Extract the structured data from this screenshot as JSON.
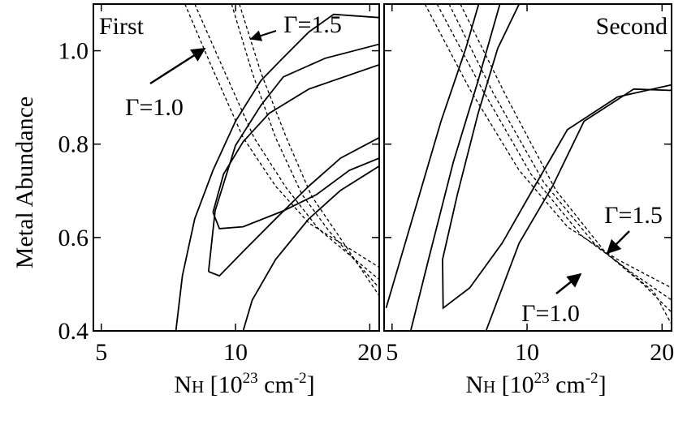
{
  "chart_data": [
    {
      "type": "contour",
      "title": "First",
      "ylabel": "Metal Abundance",
      "xlabel": [
        "N",
        "H",
        " [10",
        "23",
        " cm",
        "-2",
        "]"
      ],
      "xscale": "log",
      "xlim": [
        4.8,
        21
      ],
      "xticks": [
        5,
        10,
        20
      ],
      "ylim": [
        0.4,
        1.1
      ],
      "yticks": [
        0.4,
        0.6,
        0.8,
        {
          "value": 1,
          "label": "1.0"
        }
      ],
      "annotations": [
        "Γ=1.5",
        "Γ=1.0"
      ],
      "series": [
        {
          "color": "#000000",
          "line_style": "solid",
          "x": [
            7.35,
            7.6,
            8.1,
            8.9,
            10.0,
            11.4,
            12.6,
            14.6,
            16.6,
            21
          ],
          "y": [
            0.4,
            0.518,
            0.64,
            0.744,
            0.849,
            0.936,
            0.979,
            1.04,
            1.078,
            1.071
          ]
        },
        {
          "color": "#000000",
          "line_style": "solid",
          "x": [
            8.7,
            9.0,
            10.0,
            11.4,
            12.8,
            15.9,
            21,
            21,
            17.2,
            14.6,
            12.3,
            10.4,
            9.2,
            8.7
          ],
          "y": [
            0.527,
            0.657,
            0.797,
            0.883,
            0.944,
            0.984,
            1.014,
            0.814,
            0.77,
            0.71,
            0.64,
            0.57,
            0.518,
            0.527
          ]
        },
        {
          "color": "#000000",
          "line_style": "solid",
          "x": [
            8.9,
            9.4,
            10.4,
            11.9,
            14.6,
            21,
            21,
            18.0,
            15.2,
            12.8,
            10.4,
            9.2,
            8.9
          ],
          "y": [
            0.654,
            0.736,
            0.805,
            0.866,
            0.918,
            0.97,
            0.77,
            0.744,
            0.692,
            0.657,
            0.623,
            0.619,
            0.654
          ]
        },
        {
          "color": "#000000",
          "line_style": "solid",
          "x": [
            21,
            17.2,
            14.6,
            12.3,
            10.9,
            10.4
          ],
          "y": [
            0.753,
            0.701,
            0.64,
            0.553,
            0.466,
            0.4
          ]
        },
        {
          "color": "#000000",
          "line_style": "dashed",
          "x": [
            7.7,
            8.8,
            10.4,
            12.3,
            14.6,
            21
          ],
          "y": [
            1.1,
            0.97,
            0.814,
            0.71,
            0.631,
            0.536
          ]
        },
        {
          "color": "#000000",
          "line_style": "dashed",
          "x": [
            8.1,
            9.3,
            11.0,
            13.0,
            15.4,
            21
          ],
          "y": [
            1.1,
            0.97,
            0.814,
            0.706,
            0.617,
            0.51
          ]
        },
        {
          "color": "#000000",
          "line_style": "dashed",
          "x": [
            9.8,
            10.9,
            12.3,
            14.1,
            16.2,
            21
          ],
          "y": [
            1.1,
            0.953,
            0.814,
            0.692,
            0.614,
            0.492
          ]
        },
        {
          "color": "#000000",
          "line_style": "dashed",
          "x": [
            10.2,
            11.4,
            13.0,
            14.8,
            17.0,
            21
          ],
          "y": [
            1.1,
            0.953,
            0.814,
            0.689,
            0.605,
            0.475
          ]
        }
      ]
    },
    {
      "type": "contour",
      "title": "Second",
      "xlabel": [
        "N",
        "H",
        " [10",
        "23",
        " cm",
        "-2",
        "]"
      ],
      "xscale": "log",
      "xlim": [
        4.8,
        21
      ],
      "xticks": [
        5,
        10,
        20
      ],
      "ylim": [
        0.4,
        1.1
      ],
      "yticks": [
        0.4,
        0.6,
        0.8,
        {
          "value": 1,
          "label": "1.0"
        }
      ],
      "annotations": [
        "Γ=1.5",
        "Γ=1.0"
      ],
      "series": [
        {
          "color": "#000000",
          "line_style": "solid",
          "x": [
            4.85,
            5.55,
            6.43,
            7.3,
            7.8
          ],
          "y": [
            0.449,
            0.64,
            0.849,
            1.005,
            1.1
          ]
        },
        {
          "color": "#000000",
          "line_style": "solid",
          "x": [
            5.5,
            6.03,
            6.85,
            7.78,
            8.7
          ],
          "y": [
            0.4,
            0.553,
            0.762,
            0.936,
            1.1
          ]
        },
        {
          "color": "#000000",
          "line_style": "solid",
          "x": [
            9.6,
            8.6,
            7.78,
            6.99,
            6.48,
            6.5,
            7.45,
            8.8,
            10.4,
            12.3,
            15.9,
            21
          ],
          "y": [
            1.1,
            1.005,
            0.866,
            0.692,
            0.553,
            0.449,
            0.492,
            0.588,
            0.71,
            0.831,
            0.901,
            0.927
          ]
        },
        {
          "color": "#000000",
          "line_style": "solid",
          "x": [
            8.1,
            9.6,
            11.4,
            13.4,
            17.3,
            21
          ],
          "y": [
            0.4,
            0.588,
            0.71,
            0.849,
            0.918,
            0.915
          ]
        },
        {
          "color": "#000000",
          "line_style": "dashed",
          "x": [
            5.92,
            7.45,
            9.6,
            12.3,
            15.9,
            21
          ],
          "y": [
            1.1,
            0.918,
            0.744,
            0.623,
            0.553,
            0.492
          ]
        },
        {
          "color": "#000000",
          "line_style": "dashed",
          "x": [
            6.3,
            7.94,
            10.2,
            13.2,
            17.0,
            21
          ],
          "y": [
            1.1,
            0.918,
            0.736,
            0.605,
            0.527,
            0.466
          ]
        },
        {
          "color": "#000000",
          "line_style": "dashed",
          "x": [
            6.7,
            8.4,
            10.9,
            14.1,
            18.1,
            21
          ],
          "y": [
            1.1,
            0.91,
            0.718,
            0.588,
            0.501,
            0.44
          ]
        },
        {
          "color": "#000000",
          "line_style": "dashed",
          "x": [
            7.1,
            9.0,
            11.6,
            14.9,
            19.2,
            21
          ],
          "y": [
            1.1,
            0.901,
            0.701,
            0.57,
            0.483,
            0.414
          ]
        }
      ]
    }
  ]
}
